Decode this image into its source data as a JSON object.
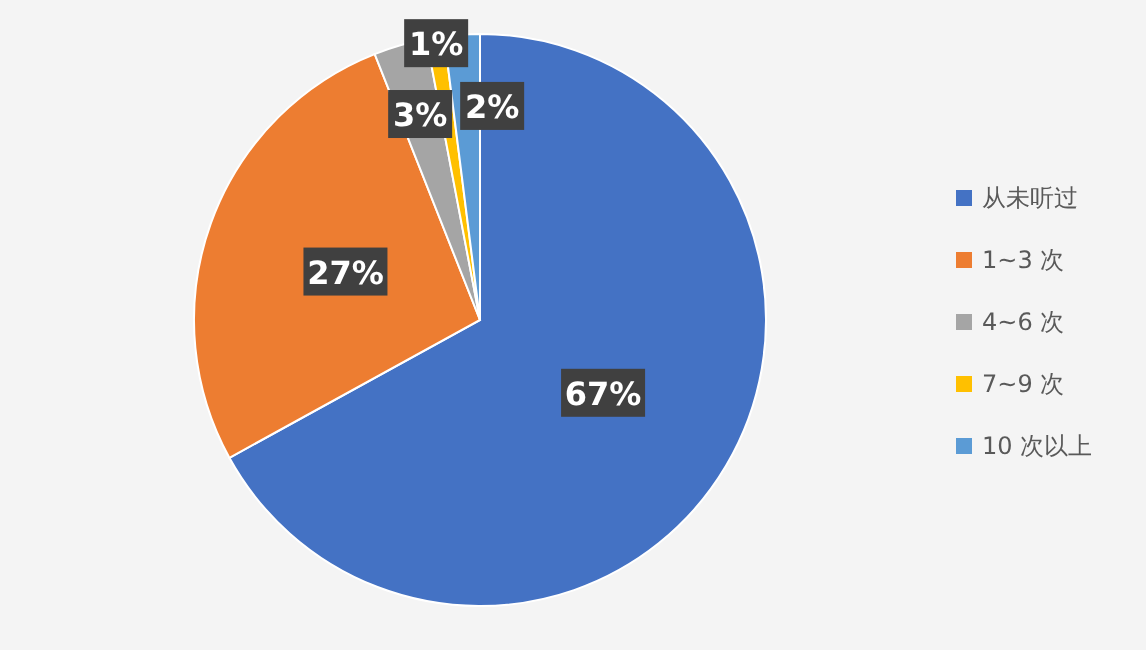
{
  "chart_data": {
    "type": "pie",
    "categories": [
      "从未听过",
      "1~3 次",
      "4~6 次",
      "7~9 次",
      "10 次以上"
    ],
    "values": [
      67,
      27,
      3,
      1,
      2
    ],
    "colors": [
      "#4472c4",
      "#ed7d31",
      "#a5a5a5",
      "#ffc000",
      "#5b9bd5"
    ],
    "value_labels": [
      "67%",
      "27%",
      "3%",
      "1%",
      "2%"
    ],
    "legend": "right"
  }
}
